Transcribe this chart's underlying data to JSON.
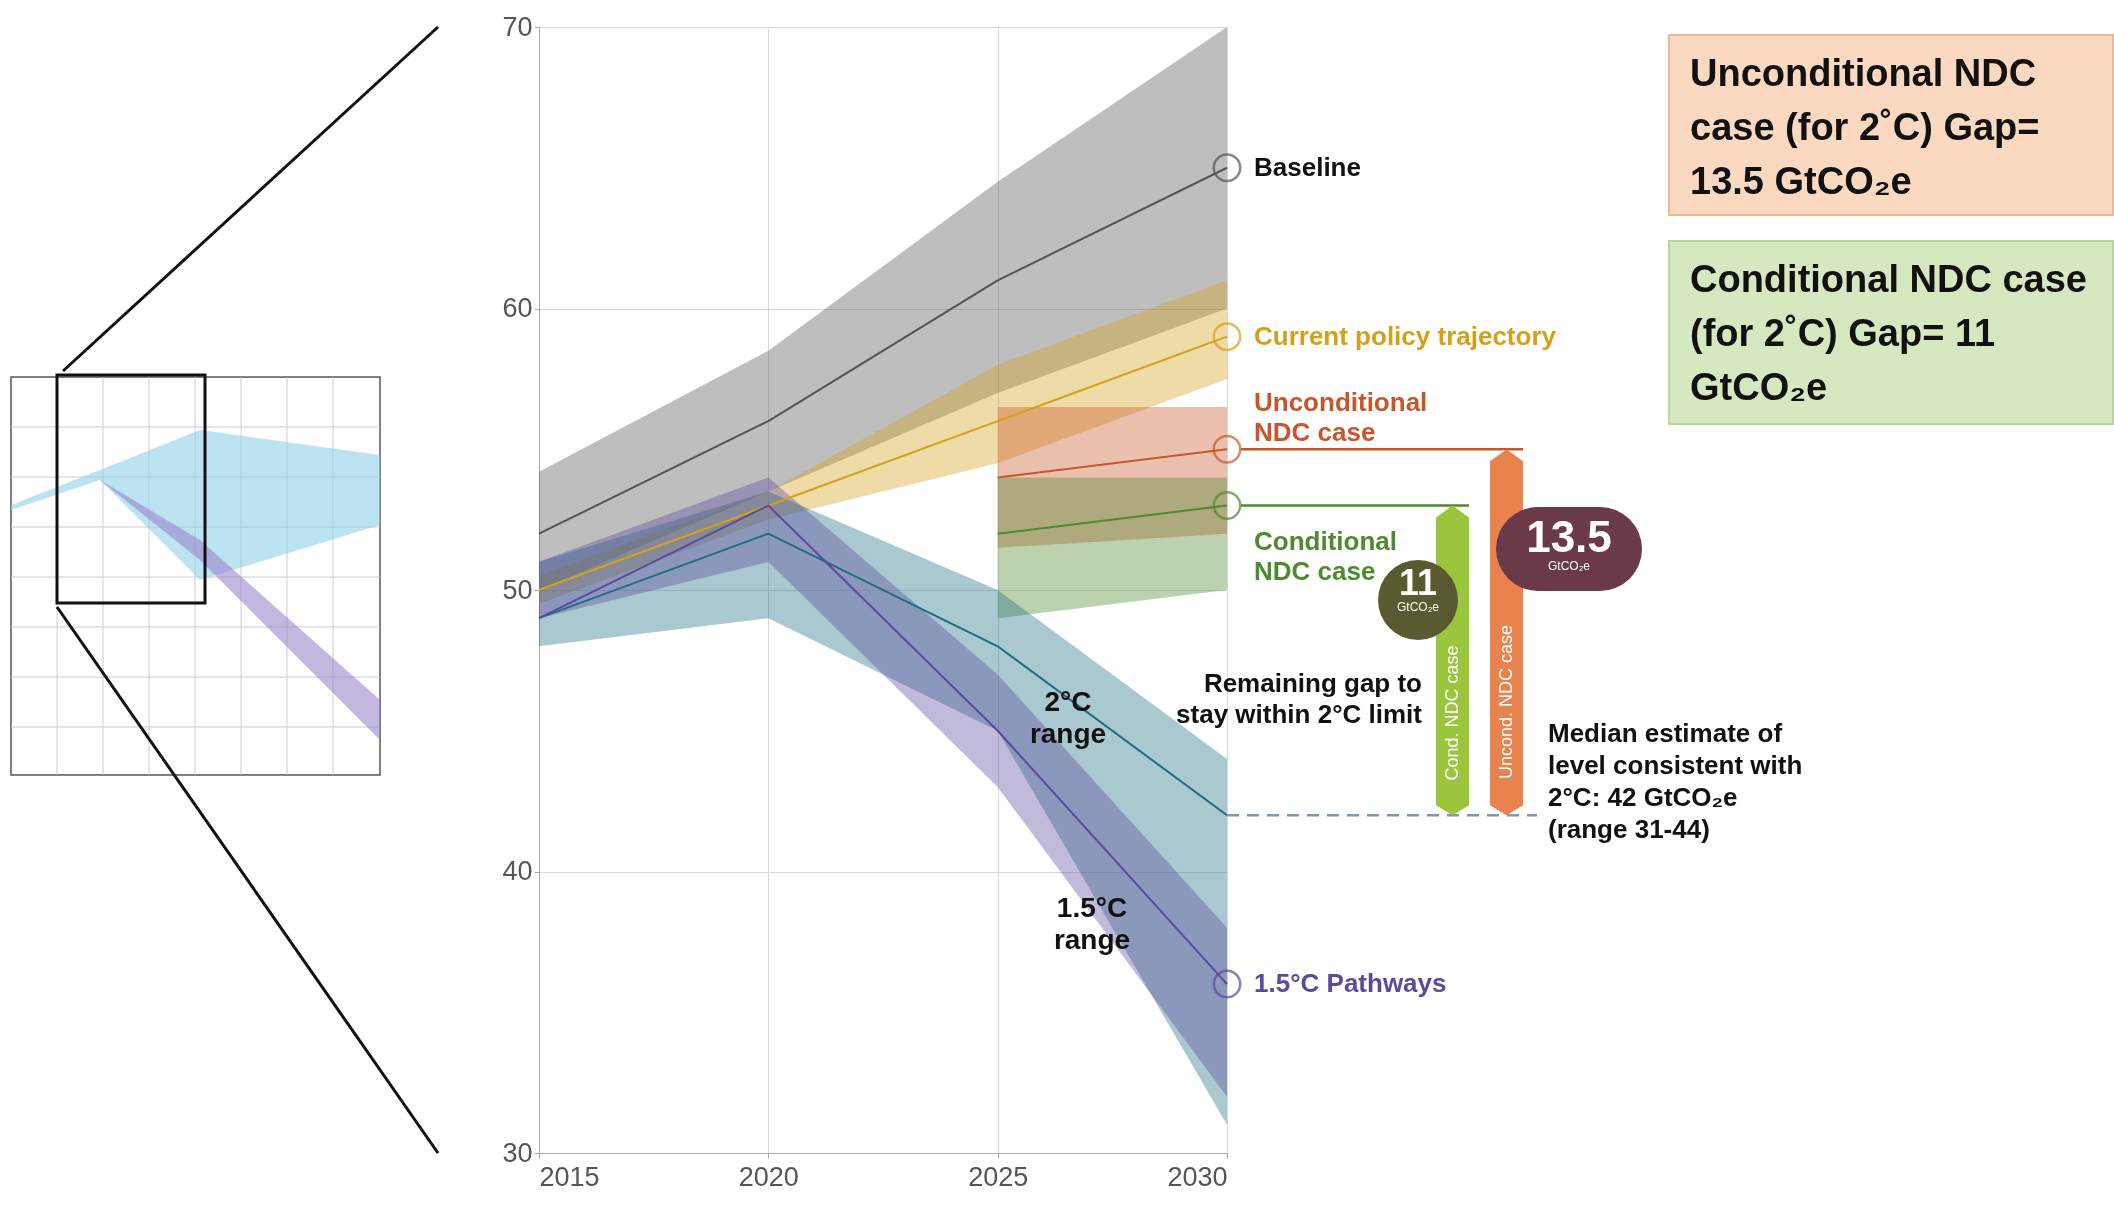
{
  "chart_data": {
    "type": "line",
    "xlim": [
      2015,
      2030
    ],
    "xticks": [
      2015,
      2020,
      2025,
      2030
    ],
    "ylim": [
      30,
      70
    ],
    "yticks": [
      30,
      40,
      50,
      60,
      70
    ],
    "grid": true,
    "series": [
      {
        "name": "Baseline",
        "color": "#555555",
        "x": [
          2015,
          2020,
          2025,
          2030
        ],
        "values": [
          52,
          56,
          61,
          65
        ],
        "lower": [
          50,
          53.5,
          57,
          60
        ],
        "upper": [
          54.2,
          58.5,
          64.5,
          70
        ]
      },
      {
        "name": "Current policy trajectory",
        "color": "#d4a017",
        "x": [
          2015,
          2020,
          2025,
          2030
        ],
        "values": [
          50,
          53,
          56,
          59
        ],
        "lower": [
          49.5,
          52.5,
          54.5,
          57.5
        ],
        "upper": [
          50.5,
          53.5,
          58,
          61
        ]
      },
      {
        "name": "Unconditional NDC case",
        "color": "#c8562a",
        "x": [
          2025,
          2030
        ],
        "values": [
          54,
          55
        ],
        "lower": [
          51.5,
          52
        ],
        "upper": [
          56.5,
          56.5
        ]
      },
      {
        "name": "Conditional NDC case",
        "color": "#4e8a2e",
        "x": [
          2025,
          2030
        ],
        "values": [
          52,
          53
        ],
        "lower": [
          49,
          50
        ],
        "upper": [
          54,
          54
        ]
      },
      {
        "color": "#1d6f80",
        "x": [
          2015,
          2020,
          2025,
          2030
        ],
        "values": [
          49,
          52,
          48,
          42
        ],
        "lower": [
          48,
          49,
          45,
          31
        ],
        "upper": [
          51,
          53.5,
          50,
          44
        ]
      },
      {
        "name": "1.5°C Pathways",
        "color": "#5b4a9e",
        "x": [
          2015,
          2020,
          2025,
          2030
        ],
        "values": [
          49,
          53,
          45,
          36
        ],
        "lower": [
          49,
          51,
          43,
          32
        ],
        "upper": [
          51,
          54,
          47,
          38
        ]
      }
    ],
    "ref_lines": [
      {
        "axis": "y",
        "value": 42,
        "label": "Median estimate of level consistent with 2°C: 42 GtCO₂e (range 31-44)",
        "color": "#7a9bb5",
        "line_style": "dashed"
      }
    ],
    "annotations": [
      "2°C range",
      "1.5°C range",
      "Remaining gap to stay within 2°C limit",
      "Cond. NDC case",
      "Uncond. NDC case",
      "11 GtCO₂e",
      "13.5 GtCO₂e",
      "Unconditional NDC case (for 2˚C) Gap= 13.5 GtCO₂e",
      "Conditional NDC case (for 2˚C) Gap= 11 GtCO₂e"
    ]
  }
}
